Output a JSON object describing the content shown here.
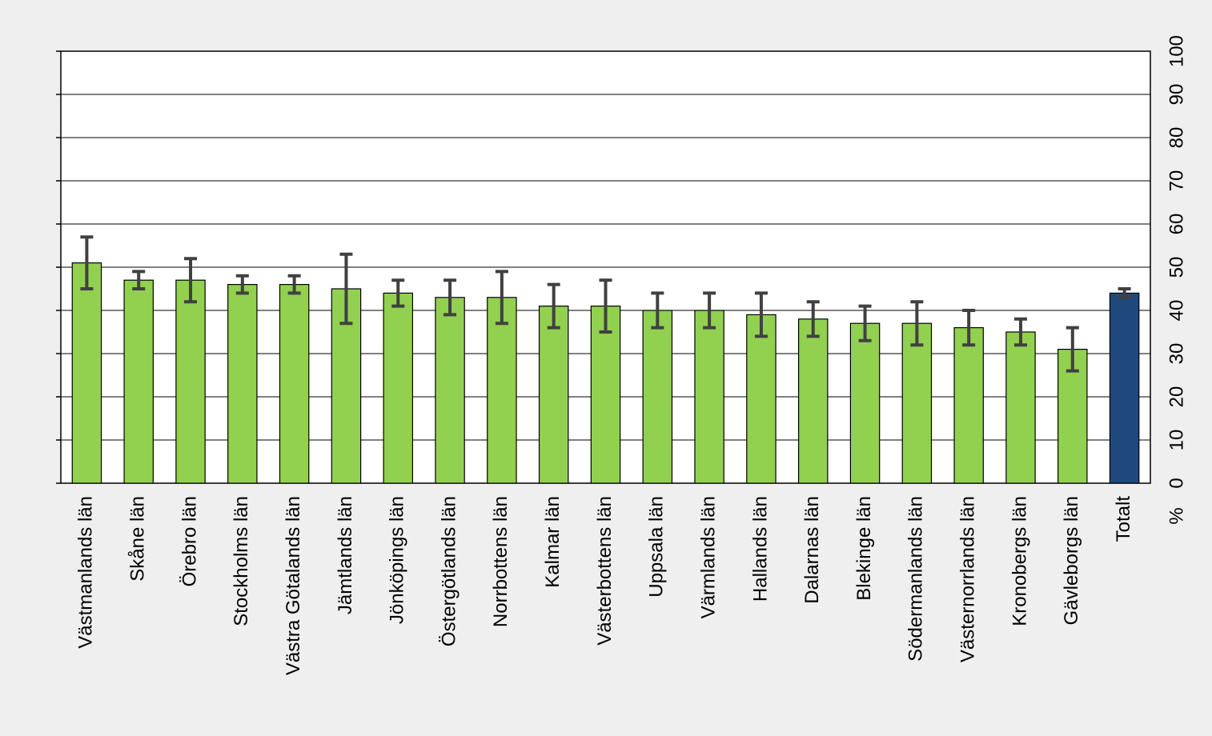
{
  "chart_data": {
    "type": "bar",
    "categories": [
      "Västmanlands län",
      "Skåne län",
      "Örebro län",
      "Stockholms län",
      "Västra Götalands län",
      "Jämtlands län",
      "Jönköpings län",
      "Östergötlands län",
      "Norrbottens län",
      "Kalmar län",
      "Västerbottens län",
      "Uppsala län",
      "Värmlands län",
      "Hallands län",
      "Dalarnas län",
      "Blekinge län",
      "Södermanlands län",
      "Västernorrlands län",
      "Kronobergs län",
      "Gävleborgs län",
      "Totalt"
    ],
    "values": [
      51,
      47,
      47,
      46,
      46,
      45,
      44,
      43,
      43,
      41,
      41,
      40,
      40,
      39,
      38,
      37,
      37,
      36,
      35,
      31,
      44
    ],
    "ci_low": [
      45,
      45,
      42,
      44,
      44,
      37,
      41,
      39,
      37,
      36,
      35,
      36,
      36,
      34,
      34,
      33,
      32,
      32,
      32,
      26,
      43
    ],
    "ci_high": [
      57,
      49,
      52,
      48,
      48,
      53,
      47,
      47,
      49,
      46,
      47,
      44,
      44,
      44,
      42,
      41,
      42,
      40,
      38,
      36,
      45
    ],
    "colors": [
      "#92d050",
      "#92d050",
      "#92d050",
      "#92d050",
      "#92d050",
      "#92d050",
      "#92d050",
      "#92d050",
      "#92d050",
      "#92d050",
      "#92d050",
      "#92d050",
      "#92d050",
      "#92d050",
      "#92d050",
      "#92d050",
      "#92d050",
      "#92d050",
      "#92d050",
      "#92d050",
      "#1f497d"
    ],
    "error_color": "#404040",
    "y_label": "%",
    "ylim": [
      0,
      100
    ],
    "yticks": [
      0,
      10,
      20,
      30,
      40,
      50,
      60,
      70,
      80,
      90,
      100
    ],
    "grid": true
  }
}
